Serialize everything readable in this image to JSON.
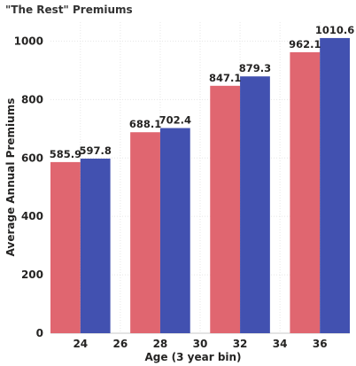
{
  "chart_data": {
    "type": "bar",
    "title": "\"The Rest\" Premiums",
    "xlabel": "Age (3 year bin)",
    "ylabel": "Average Annual Premiums",
    "x_ticks": [
      24,
      26,
      28,
      30,
      32,
      34,
      36
    ],
    "x_range": [
      22.5,
      37.5
    ],
    "y_ticks": [
      0,
      200,
      400,
      600,
      800,
      1000
    ],
    "ylim": [
      0,
      1065
    ],
    "grid": true,
    "legend": "none",
    "categories": [
      24,
      28,
      32,
      36
    ],
    "series": [
      {
        "color": "#e06670",
        "values": [
          585.9,
          688.1,
          847.1,
          962.1
        ]
      },
      {
        "color": "#4251b0",
        "values": [
          597.8,
          702.4,
          879.3,
          1010.6
        ]
      }
    ]
  }
}
